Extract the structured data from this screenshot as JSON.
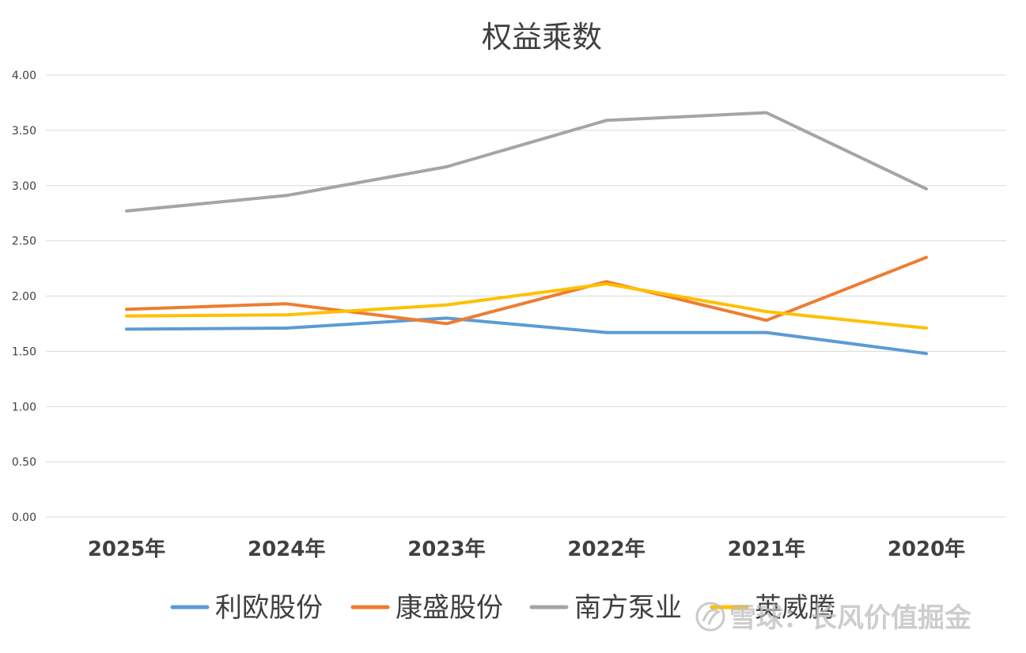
{
  "chart_data": {
    "type": "line",
    "title": "权益乘数",
    "xlabel": "",
    "ylabel": "",
    "categories": [
      "2025年",
      "2024年",
      "2023年",
      "2022年",
      "2021年",
      "2020年"
    ],
    "y_ticks": [
      "0.00",
      "0.50",
      "1.00",
      "1.50",
      "2.00",
      "2.50",
      "3.00",
      "3.50",
      "4.00"
    ],
    "ylim": [
      0,
      4
    ],
    "grid": true,
    "legend_position": "bottom",
    "series": [
      {
        "name": "利欧股份",
        "color": "#5B9BD5",
        "values": [
          1.7,
          1.71,
          1.8,
          1.67,
          1.67,
          1.48
        ]
      },
      {
        "name": "康盛股份",
        "color": "#ED7D31",
        "values": [
          1.88,
          1.93,
          1.75,
          2.13,
          1.78,
          2.35
        ]
      },
      {
        "name": "南方泵业",
        "color": "#A5A5A5",
        "values": [
          2.77,
          2.91,
          3.17,
          3.59,
          3.66,
          2.97
        ]
      },
      {
        "name": "英威腾",
        "color": "#FFC000",
        "values": [
          1.82,
          1.83,
          1.92,
          2.11,
          1.86,
          1.71
        ]
      }
    ]
  },
  "watermark": {
    "text": "雪球：长风价值掘金",
    "icon": "snowball-logo-icon"
  }
}
